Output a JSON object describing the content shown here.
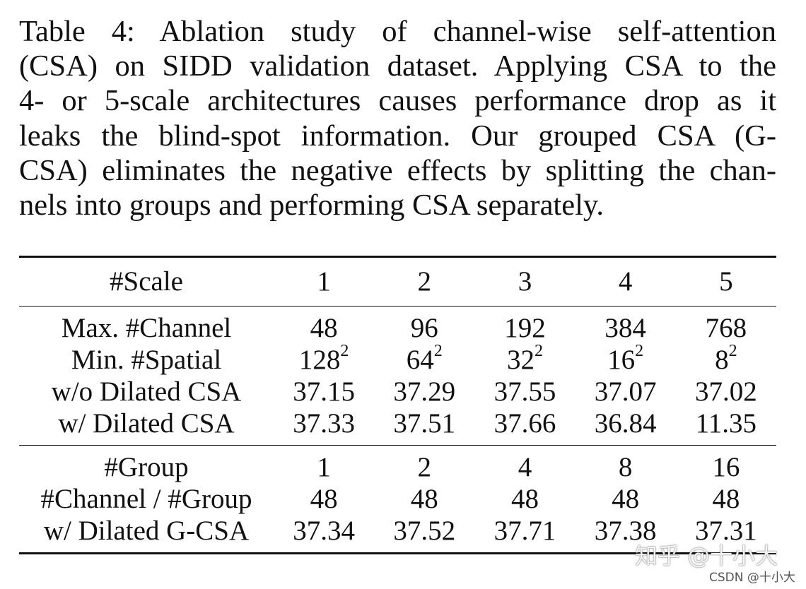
{
  "caption": {
    "lines": [
      "Table 4: Ablation study of channel-wise self-attention",
      "(CSA) on SIDD validation dataset. Applying CSA to the",
      "4- or 5-scale architectures causes performance drop as it",
      "leaks the blind-spot information. Our grouped CSA (G-",
      "CSA) eliminates the negative effects by splitting the chan-",
      "nels into groups and performing CSA separately."
    ]
  },
  "table": {
    "header": {
      "label": "#Scale",
      "values": [
        "1",
        "2",
        "3",
        "4",
        "5"
      ]
    },
    "section1": {
      "max_channel": {
        "label": "Max. #Channel",
        "values": [
          "48",
          "96",
          "192",
          "384",
          "768"
        ]
      },
      "min_spatial": {
        "label": "Min. #Spatial",
        "bases": [
          "128",
          "64",
          "32",
          "16",
          "8"
        ],
        "exponent": "2"
      },
      "wo_dilated_csa": {
        "label": "w/o Dilated CSA",
        "values": [
          "37.15",
          "37.29",
          "37.55",
          "37.07",
          "37.02"
        ]
      },
      "w_dilated_csa": {
        "label": "w/ Dilated CSA",
        "values": [
          "37.33",
          "37.51",
          "37.66",
          "36.84",
          "11.35"
        ]
      }
    },
    "section2": {
      "group": {
        "label": "#Group",
        "values": [
          "1",
          "2",
          "4",
          "8",
          "16"
        ]
      },
      "channel_per_group": {
        "label": "#Channel / #Group",
        "values": [
          "48",
          "48",
          "48",
          "48",
          "48"
        ]
      },
      "w_dilated_gcsa": {
        "label": "w/ Dilated G-CSA",
        "values": [
          "37.34",
          "37.52",
          "37.71",
          "37.38",
          "37.31"
        ]
      }
    }
  },
  "watermarks": {
    "zhihu": "知乎 @十小大",
    "csdn": "CSDN @十小大"
  }
}
